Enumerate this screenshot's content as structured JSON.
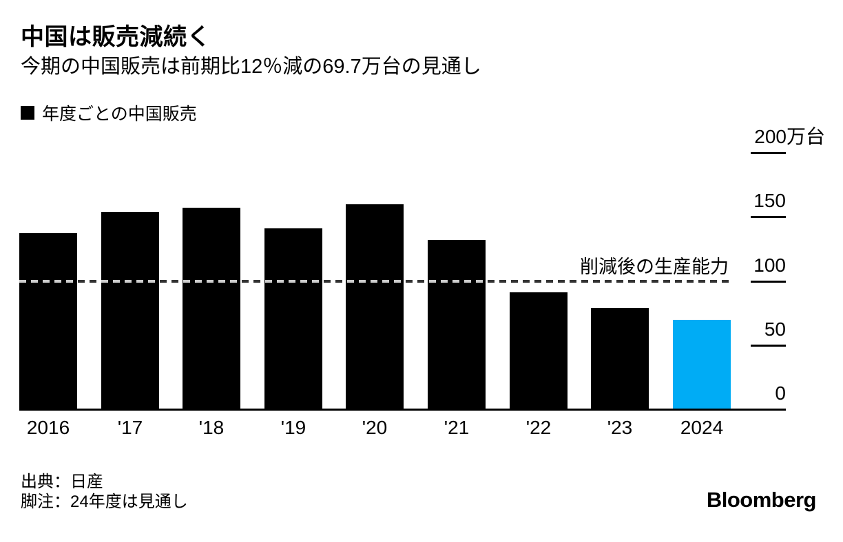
{
  "header": {
    "title": "中国は販売減続く",
    "subtitle": "今期の中国販売は前期比12％減の69.7万台の見通し"
  },
  "legend": {
    "swatch_color": "#000000",
    "label": "年度ごとの中国販売"
  },
  "chart_data": {
    "type": "bar",
    "title": "年度ごとの中国販売",
    "unit": "万台",
    "categories": [
      "2016",
      "'17",
      "'18",
      "'19",
      "'20",
      "'21",
      "'22",
      "'23",
      "2024"
    ],
    "values": [
      137,
      154,
      157,
      141,
      160,
      132,
      91,
      79,
      69.7
    ],
    "ylim": [
      0,
      200
    ],
    "yticks": [
      200,
      150,
      100,
      50,
      0
    ],
    "ytick_labels": [
      "200万台",
      "150",
      "100",
      "50",
      "0"
    ],
    "axis_side": "right",
    "grid": false,
    "legend_position": "top-left",
    "default_bar_color": "#000000",
    "highlight_bar": {
      "category": "2024",
      "index": 8,
      "color": "#00acf5"
    },
    "reference_line": {
      "value": 100,
      "label": "削減後の生産能力",
      "style": "dashed",
      "color": "#000000"
    }
  },
  "footer": {
    "source": "出典：日産",
    "note": "脚注：24年度は見通し",
    "brand": "Bloomberg"
  }
}
